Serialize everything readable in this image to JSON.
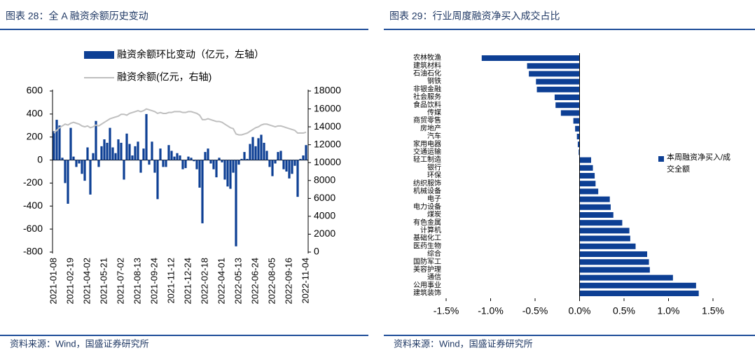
{
  "chart_data": [
    {
      "type": "bar",
      "title": "图表 28：全 A 融资余额历史变动",
      "source": "资料来源：Wind，国盛证券研究所",
      "categories": [
        "2021-01-08",
        null,
        null,
        null,
        null,
        null,
        "2021-02-19",
        null,
        null,
        null,
        null,
        null,
        "2021-04-02",
        null,
        null,
        null,
        null,
        null,
        "2021-05-21",
        null,
        null,
        null,
        null,
        null,
        "2021-07-02",
        null,
        null,
        null,
        null,
        null,
        "2021-08-13",
        null,
        null,
        null,
        null,
        null,
        "2021-09-24",
        null,
        null,
        null,
        null,
        null,
        "2021-11-12",
        null,
        null,
        null,
        null,
        null,
        "2021-12-24",
        null,
        null,
        null,
        null,
        null,
        "2022-02-18",
        null,
        null,
        null,
        null,
        null,
        "2022-04-01",
        null,
        null,
        null,
        null,
        null,
        "2022-05-13",
        null,
        null,
        null,
        null,
        null,
        "2022-06-24",
        null,
        null,
        null,
        null,
        null,
        "2022-08-05",
        null,
        null,
        null,
        null,
        null,
        "2022-09-16",
        null,
        null,
        null,
        null,
        null,
        "2022-11-04"
      ],
      "series": [
        {
          "name": "融资余额环比变动（亿元，左轴）",
          "type": "bar",
          "color": "#0d3f94",
          "values": [
            250,
            350,
            300,
            20,
            -200,
            -380,
            280,
            30,
            -60,
            -30,
            -120,
            -180,
            110,
            -300,
            60,
            340,
            -60,
            120,
            180,
            150,
            280,
            110,
            60,
            180,
            150,
            -170,
            230,
            140,
            40,
            120,
            160,
            -110,
            100,
            400,
            -40,
            160,
            -110,
            -340,
            100,
            -60,
            -60,
            130,
            80,
            30,
            60,
            40,
            -80,
            -70,
            30,
            20,
            -10,
            -80,
            -240,
            -550,
            70,
            100,
            -30,
            -80,
            -150,
            20,
            -20,
            -170,
            -230,
            -250,
            -110,
            -750,
            -40,
            10,
            70,
            10,
            140,
            200,
            120,
            190,
            220,
            150,
            80,
            -60,
            -140,
            -30,
            70,
            80,
            -80,
            -100,
            -160,
            -120,
            -50,
            -320,
            10,
            40,
            130
          ]
        },
        {
          "name": "融资余额(亿元，右轴)",
          "type": "line",
          "axis": "y2",
          "color": "#bfbfbf",
          "values": [
            13300,
            13600,
            13900,
            14100,
            14300,
            14200,
            14400,
            14500,
            14400,
            14300,
            14100,
            14000,
            14100,
            13900,
            14000,
            14200,
            14100,
            14300,
            14500,
            14700,
            14900,
            15000,
            15100,
            15200,
            15400,
            15400,
            15300,
            15500,
            15600,
            15700,
            15800,
            15700,
            15800,
            16000,
            15900,
            15800,
            15700,
            15500,
            15600,
            15500,
            15500,
            15600,
            15600,
            15700,
            15700,
            15700,
            15600,
            15600,
            15700,
            15700,
            15600,
            15500,
            15300,
            14800,
            14800,
            14900,
            14800,
            14700,
            14600,
            14600,
            14500,
            14300,
            14100,
            13900,
            13800,
            13200,
            13100,
            13100,
            13200,
            13300,
            13500,
            13700,
            13900,
            14000,
            14200,
            14300,
            14300,
            14200,
            14100,
            14000,
            14100,
            14100,
            14000,
            13900,
            13800,
            13700,
            13600,
            13300,
            13300,
            13300,
            13400
          ]
        }
      ],
      "ylim": [
        -800,
        600
      ],
      "yticks": [
        -800,
        -600,
        -400,
        -200,
        0,
        200,
        400,
        600
      ],
      "y2lim": [
        0,
        18000
      ],
      "y2ticks": [
        0,
        2000,
        4000,
        6000,
        8000,
        10000,
        12000,
        14000,
        16000,
        18000
      ]
    },
    {
      "type": "barh",
      "title": "图表 29：行业周度融资净买入成交占比",
      "source": "资料来源：Wind，国盛证券研究所",
      "categories": [
        "农林牧渔",
        "建筑材料",
        "石油石化",
        "钢铁",
        "非银金融",
        "社会服务",
        "食品饮料",
        "传媒",
        "商贸零售",
        "房地产",
        "汽车",
        "家用电器",
        "交通运输",
        "轻工制造",
        "银行",
        "环保",
        "纺织服饰",
        "机械设备",
        "电子",
        "电力设备",
        "煤炭",
        "有色金属",
        "计算机",
        "基础化工",
        "医药生物",
        "综合",
        "国防军工",
        "美容护理",
        "通信",
        "公用事业",
        "建筑装饰"
      ],
      "series": [
        {
          "name": "本周融资净买入/成交全额",
          "color": "#0d3f94",
          "values": [
            -1.1,
            -0.59,
            -0.57,
            -0.49,
            -0.48,
            -0.28,
            -0.27,
            -0.21,
            -0.07,
            -0.05,
            -0.03,
            -0.02,
            -0.01,
            0.13,
            0.15,
            0.17,
            0.18,
            0.21,
            0.34,
            0.35,
            0.38,
            0.48,
            0.56,
            0.57,
            0.63,
            0.76,
            0.78,
            0.79,
            1.05,
            1.31,
            1.34
          ]
        }
      ],
      "xlim": [
        -1.5,
        1.5
      ],
      "xticks": [
        {
          "value": -1.5,
          "label": "-1.5%"
        },
        {
          "value": -1.0,
          "label": "-1.0%"
        },
        {
          "value": -0.5,
          "label": "-0.5%"
        },
        {
          "value": 0,
          "label": "0.0%"
        },
        {
          "value": 0.5,
          "label": "0.5%"
        },
        {
          "value": 1.0,
          "label": "1.0%"
        },
        {
          "value": 1.5,
          "label": "1.5%"
        }
      ]
    }
  ]
}
